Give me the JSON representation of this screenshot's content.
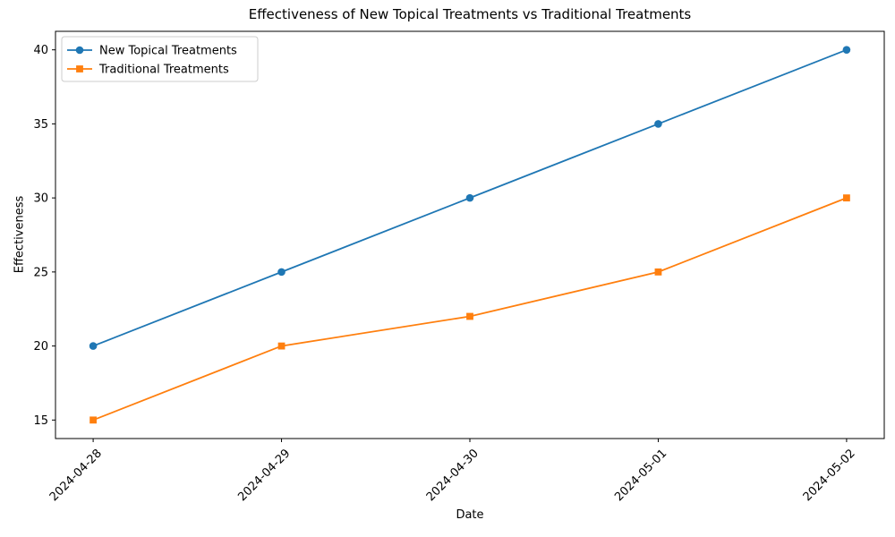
{
  "chart_data": {
    "type": "line",
    "title": "Effectiveness of New Topical Treatments vs Traditional Treatments",
    "xlabel": "Date",
    "ylabel": "Effectiveness",
    "x": [
      "2024-04-28",
      "2024-04-29",
      "2024-04-30",
      "2024-05-01",
      "2024-05-02"
    ],
    "series": [
      {
        "name": "New Topical Treatments",
        "values": [
          20,
          25,
          30,
          35,
          40
        ],
        "color": "#1f77b4",
        "marker": "circle"
      },
      {
        "name": "Traditional Treatments",
        "values": [
          15,
          20,
          22,
          25,
          30
        ],
        "color": "#ff7f0e",
        "marker": "square"
      }
    ],
    "yticks": [
      15,
      20,
      25,
      30,
      35,
      40
    ],
    "ylim": [
      13.75,
      41.25
    ],
    "xlim": [
      -0.2,
      4.2
    ],
    "grid": false,
    "legend_position": "upper left",
    "legend_border_color": "#cccccc",
    "x_tick_rotation": 45,
    "spine_color": "#000000",
    "background_color": "#ffffff"
  }
}
